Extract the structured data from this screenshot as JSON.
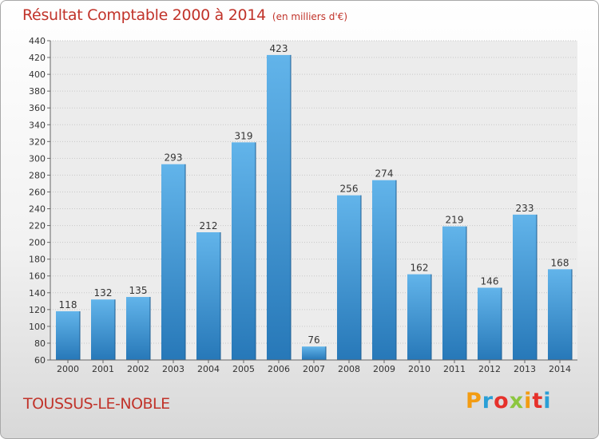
{
  "chart_data": {
    "type": "bar",
    "title": "Résultat Comptable 2000 à 2014",
    "subtitle": "(en milliers d'€)",
    "categories": [
      "2000",
      "2001",
      "2002",
      "2003",
      "2004",
      "2005",
      "2006",
      "2007",
      "2008",
      "2009",
      "2010",
      "2011",
      "2012",
      "2013",
      "2014"
    ],
    "values": [
      118,
      132,
      135,
      293,
      212,
      319,
      423,
      76,
      256,
      274,
      162,
      219,
      146,
      233,
      168
    ],
    "ylim": [
      60,
      440
    ],
    "yticks": [
      60,
      80,
      100,
      120,
      140,
      160,
      180,
      200,
      220,
      240,
      260,
      280,
      300,
      320,
      340,
      360,
      380,
      400,
      420,
      440
    ],
    "grid": true,
    "xlabel": "",
    "ylabel": ""
  },
  "location": "TOUSSUS-LE-NOBLE",
  "brand": {
    "letters": [
      "P",
      "r",
      "o",
      "x",
      "i",
      "t",
      "i"
    ],
    "colors": [
      "#f39c12",
      "#2a9fd6",
      "#e6312b",
      "#8cc63f",
      "#f39c12",
      "#e6312b",
      "#2a9fd6"
    ]
  },
  "colors": {
    "bar_top": "#62b4ea",
    "bar_bottom": "#2778b8",
    "title": "#c1332a"
  }
}
